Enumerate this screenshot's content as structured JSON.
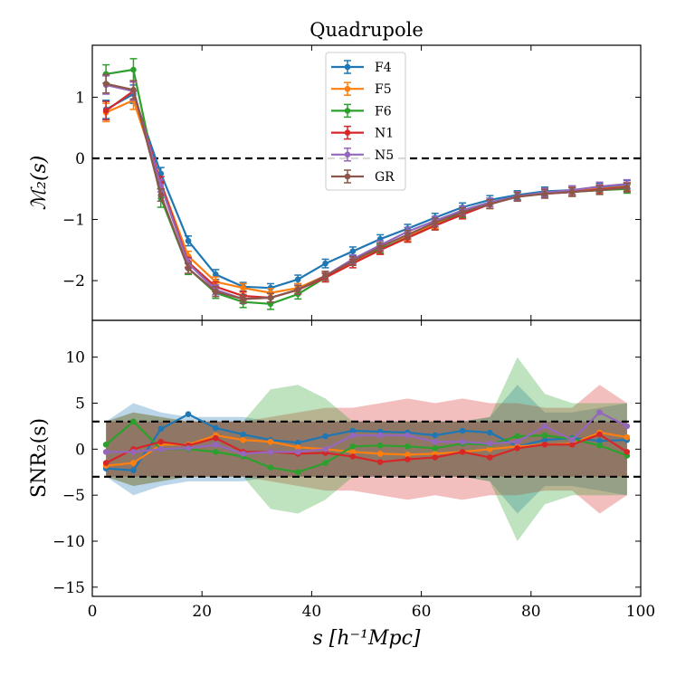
{
  "chart_data": {
    "type": "line",
    "title": "Quadrupole",
    "x": [
      2.5,
      7.5,
      12.5,
      17.5,
      22.5,
      27.5,
      32.5,
      37.5,
      42.5,
      47.5,
      52.5,
      57.5,
      62.5,
      67.5,
      72.5,
      77.5,
      82.5,
      87.5,
      92.5,
      97.5
    ],
    "xlim": [
      0,
      100
    ],
    "xticks": [
      0,
      20,
      40,
      60,
      80,
      100
    ],
    "xtick_labels": [
      "0",
      "20",
      "40",
      "60",
      "80",
      "100"
    ],
    "xlabel": "s [h⁻¹Mpc]",
    "colors": {
      "F4": "#1f77b4",
      "F5": "#ff7f0e",
      "F6": "#2ca02c",
      "N1": "#d62728",
      "N5": "#9467bd",
      "GR": "#8c564b"
    },
    "legend": [
      "F4",
      "F5",
      "F6",
      "N1",
      "N5",
      "GR"
    ],
    "top_panel": {
      "ylabel": "ℳ₂(s)",
      "ylim": [
        -2.65,
        1.85
      ],
      "yticks": [
        -2,
        -1,
        0,
        1
      ],
      "ytick_labels": [
        "−2",
        "−1",
        "0",
        "1"
      ],
      "reference_line": 0,
      "series": [
        {
          "name": "F4",
          "values": [
            0.8,
            1.05,
            -0.25,
            -1.35,
            -1.9,
            -2.1,
            -2.12,
            -1.98,
            -1.72,
            -1.52,
            -1.32,
            -1.15,
            -0.97,
            -0.8,
            -0.68,
            -0.6,
            -0.54,
            -0.52,
            -0.48,
            -0.43
          ],
          "errors": [
            0.15,
            0.15,
            0.1,
            0.08,
            0.08,
            0.07,
            0.07,
            0.07,
            0.07,
            0.07,
            0.07,
            0.07,
            0.07,
            0.07,
            0.07,
            0.07,
            0.07,
            0.07,
            0.07,
            0.07
          ]
        },
        {
          "name": "F5",
          "values": [
            0.75,
            0.95,
            -0.4,
            -1.6,
            -2.02,
            -2.12,
            -2.2,
            -2.12,
            -1.92,
            -1.68,
            -1.5,
            -1.28,
            -1.08,
            -0.9,
            -0.75,
            -0.62,
            -0.56,
            -0.53,
            -0.5,
            -0.46
          ],
          "errors": [
            0.15,
            0.15,
            0.1,
            0.08,
            0.08,
            0.07,
            0.07,
            0.07,
            0.07,
            0.07,
            0.07,
            0.07,
            0.07,
            0.07,
            0.07,
            0.07,
            0.07,
            0.07,
            0.07,
            0.07
          ]
        },
        {
          "name": "F6",
          "values": [
            1.38,
            1.45,
            -0.65,
            -1.8,
            -2.2,
            -2.35,
            -2.38,
            -2.22,
            -1.95,
            -1.65,
            -1.48,
            -1.3,
            -1.1,
            -0.9,
            -0.75,
            -0.62,
            -0.57,
            -0.55,
            -0.52,
            -0.5
          ],
          "errors": [
            0.15,
            0.18,
            0.15,
            0.1,
            0.09,
            0.09,
            0.09,
            0.08,
            0.07,
            0.07,
            0.07,
            0.07,
            0.07,
            0.07,
            0.07,
            0.07,
            0.07,
            0.07,
            0.07,
            0.07
          ]
        },
        {
          "name": "N1",
          "values": [
            0.78,
            1.1,
            -0.4,
            -1.7,
            -2.1,
            -2.25,
            -2.28,
            -2.15,
            -1.95,
            -1.72,
            -1.5,
            -1.3,
            -1.1,
            -0.92,
            -0.75,
            -0.62,
            -0.58,
            -0.55,
            -0.51,
            -0.47
          ],
          "errors": [
            0.15,
            0.15,
            0.1,
            0.08,
            0.08,
            0.07,
            0.07,
            0.07,
            0.07,
            0.07,
            0.07,
            0.07,
            0.07,
            0.07,
            0.07,
            0.07,
            0.07,
            0.07,
            0.07,
            0.07
          ]
        },
        {
          "name": "N5",
          "values": [
            1.2,
            1.1,
            -0.45,
            -1.72,
            -2.15,
            -2.3,
            -2.28,
            -2.15,
            -1.92,
            -1.65,
            -1.42,
            -1.2,
            -1.02,
            -0.85,
            -0.72,
            -0.62,
            -0.56,
            -0.52,
            -0.46,
            -0.42
          ],
          "errors": [
            0.15,
            0.15,
            0.1,
            0.08,
            0.08,
            0.07,
            0.07,
            0.07,
            0.07,
            0.07,
            0.07,
            0.07,
            0.07,
            0.07,
            0.07,
            0.07,
            0.07,
            0.07,
            0.07,
            0.07
          ]
        },
        {
          "name": "GR",
          "values": [
            1.22,
            1.12,
            -0.6,
            -1.8,
            -2.18,
            -2.3,
            -2.28,
            -2.15,
            -1.92,
            -1.68,
            -1.45,
            -1.25,
            -1.05,
            -0.88,
            -0.75,
            -0.63,
            -0.58,
            -0.55,
            -0.52,
            -0.48
          ],
          "errors": [
            0.15,
            0.15,
            0.1,
            0.08,
            0.08,
            0.07,
            0.07,
            0.07,
            0.07,
            0.07,
            0.07,
            0.07,
            0.07,
            0.07,
            0.07,
            0.07,
            0.07,
            0.07,
            0.07,
            0.07
          ]
        }
      ]
    },
    "bottom_panel": {
      "ylabel": "SNR₂(s)",
      "ylim": [
        -16,
        14
      ],
      "yticks": [
        -15,
        -10,
        -5,
        0,
        5,
        10
      ],
      "ytick_labels": [
        "−15",
        "−10",
        "−5",
        "0",
        "5",
        "10"
      ],
      "reference_lines": [
        3,
        -3
      ],
      "series": [
        {
          "name": "F4",
          "values": [
            -2.1,
            -2.3,
            2.2,
            3.8,
            2.3,
            1.6,
            1.0,
            0.7,
            1.4,
            2.0,
            1.9,
            1.8,
            1.5,
            2.0,
            1.8,
            0.3,
            1.0,
            1.2,
            0.9,
            1.0
          ],
          "band": [
            3.0,
            5.0,
            4.0,
            3.5,
            3.5,
            3.5,
            3.0,
            3.0,
            3.0,
            3.0,
            3.0,
            3.0,
            3.0,
            3.0,
            3.5,
            7.0,
            4.0,
            4.0,
            4.5,
            5.0
          ]
        },
        {
          "name": "F5",
          "values": [
            -1.8,
            -1.5,
            0.5,
            0.5,
            1.5,
            1.0,
            0.8,
            0.2,
            0.0,
            -0.3,
            -0.5,
            -0.6,
            -0.5,
            -0.3,
            0.0,
            0.3,
            0.5,
            0.6,
            1.8,
            1.3
          ]
        },
        {
          "name": "F6",
          "values": [
            0.5,
            3.0,
            0.0,
            0.0,
            -0.3,
            -0.8,
            -2.0,
            -2.5,
            -1.5,
            0.3,
            0.4,
            0.3,
            0.1,
            0.6,
            0.5,
            1.4,
            1.5,
            1.1,
            0.4,
            -0.7
          ],
          "band": [
            3.0,
            4.0,
            3.5,
            3.0,
            3.0,
            3.0,
            6.5,
            7.0,
            5.5,
            3.0,
            3.0,
            3.0,
            3.0,
            3.0,
            3.5,
            10.0,
            6.0,
            5.0,
            5.0,
            5.0
          ]
        },
        {
          "name": "N1",
          "values": [
            -1.5,
            0.0,
            0.8,
            0.4,
            1.2,
            -0.3,
            -0.3,
            -0.5,
            -0.4,
            -0.8,
            -1.4,
            -1.1,
            -0.9,
            -0.3,
            -0.9,
            0.1,
            0.5,
            0.5,
            1.6,
            -0.3
          ],
          "band": [
            3.0,
            4.0,
            3.5,
            3.0,
            3.0,
            3.0,
            3.5,
            4.0,
            4.5,
            4.5,
            5.0,
            5.5,
            5.0,
            5.5,
            5.0,
            5.0,
            4.5,
            4.5,
            7.0,
            5.0
          ]
        },
        {
          "name": "N5",
          "values": [
            -0.3,
            -0.3,
            0.0,
            0.1,
            0.5,
            -0.5,
            -0.3,
            -0.3,
            0.0,
            1.5,
            1.5,
            1.5,
            0.8,
            0.8,
            0.6,
            0.8,
            2.5,
            1.0,
            4.0,
            2.5
          ]
        },
        {
          "name": "GR",
          "values": [
            0.0,
            0.0,
            0.0,
            0.0,
            0.0,
            0.0,
            0.0,
            0.0,
            0.0,
            0.0,
            0.0,
            0.0,
            0.0,
            0.0,
            0.0,
            0.0,
            0.0,
            0.0,
            0.0,
            0.0
          ],
          "band": [
            3.0,
            3.0,
            3.0,
            3.0,
            3.0,
            3.0,
            3.0,
            3.0,
            3.0,
            3.0,
            3.0,
            3.0,
            3.0,
            3.0,
            3.0,
            3.0,
            3.0,
            3.0,
            3.0,
            3.0
          ]
        }
      ]
    }
  }
}
